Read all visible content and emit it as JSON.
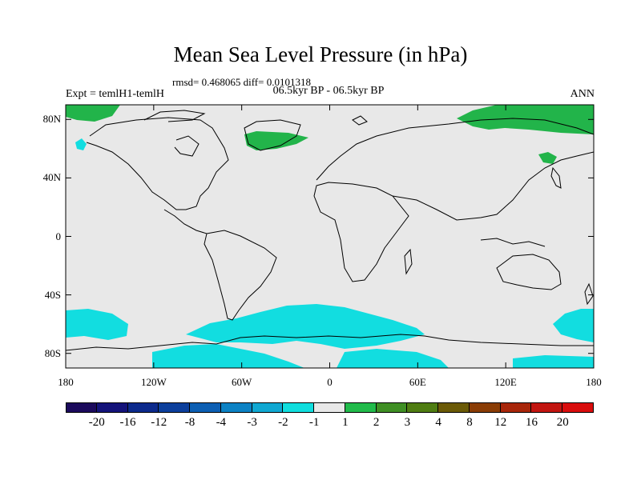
{
  "title": "Mean Sea Level Pressure (in hPa)",
  "stats": "rmsd= 0.468065 diff= 0.0101318",
  "left_label": "Expt = temlH1-temlH",
  "center_label": "06.5kyr BP - 06.5kyr BP",
  "right_label": "ANN",
  "lat_ticks": [
    "80N",
    "40N",
    "0",
    "40S",
    "80S"
  ],
  "lon_ticks": [
    "180",
    "120W",
    "60W",
    "0",
    "60E",
    "120E",
    "180"
  ],
  "colorbar": {
    "labels": [
      "-20",
      "-16",
      "-12",
      "-8",
      "-4",
      "-3",
      "-2",
      "-1",
      "1",
      "2",
      "3",
      "4",
      "8",
      "12",
      "16",
      "20"
    ],
    "colors": [
      "#1b0a5c",
      "#14137a",
      "#0c2a8c",
      "#0c3f9c",
      "#0d5fb3",
      "#0c82c4",
      "#10a8d2",
      "#10dede",
      "#e8e8e8",
      "#21bb4b",
      "#3f8f24",
      "#4f7d12",
      "#6b5a07",
      "#8a3c05",
      "#a8260a",
      "#c21510",
      "#d90d0d"
    ]
  },
  "map_colors": {
    "ocean_background": "#e8e8e8",
    "positive_anomaly": "#22b44a",
    "negative_anomaly": "#12dde0",
    "coastline": "#000000"
  }
}
